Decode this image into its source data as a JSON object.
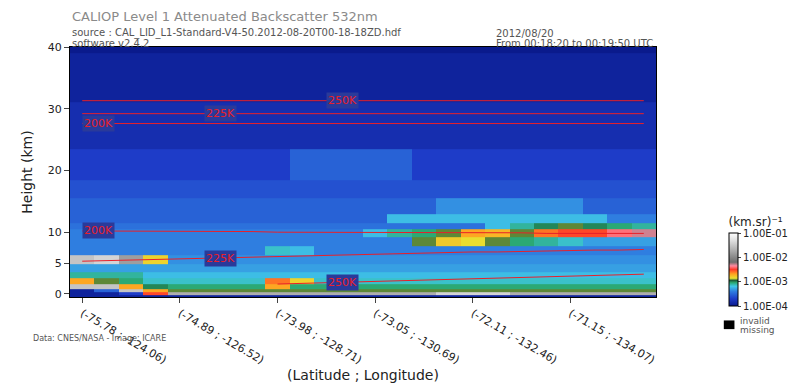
{
  "chart_data": {
    "type": "heatmap",
    "title": "CALIOP Level 1 Attenuated Backscatter 532nm",
    "annotations": [
      "source : CAL_LID_L1-Standard-V4-50.2012-08-20T00-18-18ZD.hdf",
      "software v2.4.2",
      "2012/08/20",
      "From 00:18:20 to 00:19:50 UTC",
      "invalid",
      "missing",
      "Data: CNES/NASA - Image: ICARE"
    ],
    "x_label": "(Latitude ; Longitude)",
    "y_label": "Height (km)",
    "categories": [
      "(-75.78 ; -124.06)",
      null,
      null,
      null,
      "(-74.89 ; -126.52)",
      null,
      null,
      null,
      "(-73.98 ; -128.71)",
      null,
      null,
      null,
      "(-73.05 ; -130.69)",
      null,
      null,
      null,
      "(-72.11 ; -132.46)",
      null,
      null,
      null,
      "(-71.15 ; -134.07)",
      null,
      null,
      null
    ],
    "y": [
      -0.5,
      0,
      0.5,
      1,
      2,
      3,
      4,
      5.5,
      7,
      8.5,
      10,
      11,
      12,
      14,
      17,
      20,
      27,
      35
    ],
    "ylim": [
      -0.5,
      40
    ],
    "yticks": [
      0,
      5,
      10,
      20,
      30,
      40
    ],
    "cells": [
      [
        0.00012,
        0.00012,
        0.00012,
        0.00012,
        0.00012,
        0.00012,
        0.00012,
        0.00012,
        0.00012,
        0.00012,
        0.00012,
        0.00012,
        0.00012,
        0.00012,
        0.00012,
        0.00012,
        0.00012,
        0.00012,
        0.00012,
        0.00012,
        0.00012,
        0.00012,
        0.00012,
        0.00012
      ],
      [
        0.00012,
        0.00012,
        0.0002,
        0.003,
        0.02,
        0.02,
        0.02,
        0.02,
        0.02,
        0.02,
        0.02,
        0.02,
        0.02,
        0.02,
        0.02,
        0.04,
        0.04,
        0.04,
        0.02,
        0.02,
        0.02,
        0.02,
        0.02,
        0.02
      ],
      [
        0.00012,
        0.0003,
        0.03,
        0.002,
        0.0012,
        0.0012,
        0.0012,
        0.0012,
        0.0012,
        0.0012,
        0.0012,
        0.0012,
        0.0012,
        0.0012,
        0.0012,
        0.0012,
        0.0012,
        0.0012,
        0.0012,
        0.0012,
        0.0012,
        0.0012,
        0.0012,
        0.0012
      ],
      [
        0.03,
        0.03,
        0.002,
        0.001,
        0.0009,
        0.0009,
        0.0009,
        0.0009,
        0.002,
        0.0009,
        0.0009,
        0.0009,
        0.0009,
        0.0009,
        0.0009,
        0.0009,
        0.0009,
        0.0009,
        0.0009,
        0.0009,
        0.0009,
        0.0009,
        0.0009,
        0.0009
      ],
      [
        0.002,
        0.0012,
        0.0009,
        0.0007,
        0.0007,
        0.0007,
        0.0007,
        0.0007,
        0.0025,
        0.0015,
        0.0007,
        0.0007,
        0.0007,
        0.0007,
        0.0007,
        0.0007,
        0.0007,
        0.0007,
        0.0007,
        0.0007,
        0.0007,
        0.0007,
        0.0007,
        0.0007
      ],
      [
        0.0008,
        0.0008,
        0.0008,
        0.0006,
        0.0006,
        0.0006,
        0.0006,
        0.0006,
        0.0006,
        0.0006,
        0.0006,
        0.0006,
        0.0006,
        0.0006,
        0.0006,
        0.0006,
        0.0006,
        0.0006,
        0.0006,
        0.0006,
        0.0006,
        0.0006,
        0.0006,
        0.0006
      ],
      [
        0.0005,
        0.0005,
        0.0005,
        0.0005,
        0.0005,
        0.0005,
        0.0005,
        0.0005,
        0.0005,
        0.0005,
        0.0005,
        0.0005,
        0.0005,
        0.0005,
        0.0005,
        0.0005,
        0.0005,
        0.0005,
        0.0005,
        0.0005,
        0.0005,
        0.0005,
        0.0005,
        0.0005
      ],
      [
        0.03,
        0.04,
        0.015,
        0.0015,
        0.00045,
        0.00045,
        0.00045,
        0.00045,
        0.00045,
        0.00045,
        0.00045,
        0.00045,
        0.00045,
        0.00045,
        0.00045,
        0.00045,
        0.00045,
        0.00045,
        0.00045,
        0.00045,
        0.00045,
        0.00045,
        0.00045,
        0.00045
      ],
      [
        0.0004,
        0.0004,
        0.0004,
        0.0004,
        0.0004,
        0.0004,
        0.0004,
        0.0004,
        0.0007,
        0.0006,
        0.0004,
        0.0004,
        0.0004,
        0.0004,
        0.0004,
        0.0004,
        0.0004,
        0.0004,
        0.0004,
        0.0004,
        0.0004,
        0.0004,
        0.0004,
        0.0004
      ],
      [
        0.0004,
        0.0004,
        0.0004,
        0.0004,
        0.0004,
        0.0004,
        0.0004,
        0.0004,
        0.0004,
        0.0004,
        0.0004,
        0.0004,
        0.0004,
        0.0004,
        0.0012,
        0.0016,
        0.0014,
        0.0012,
        0.0009,
        0.0008,
        0.0007,
        0.0005,
        0.0005,
        0.0005
      ],
      [
        0.0004,
        0.0004,
        0.0004,
        0.0004,
        0.0004,
        0.0004,
        0.0004,
        0.0004,
        0.0004,
        0.0004,
        0.0004,
        0.0004,
        0.0006,
        0.0008,
        0.0009,
        0.0012,
        0.002,
        0.0018,
        0.0012,
        0.0025,
        0.003,
        0.003,
        0.004,
        0.005
      ],
      [
        0.00035,
        0.00035,
        0.00035,
        0.00035,
        0.00035,
        0.00035,
        0.00035,
        0.00035,
        0.00035,
        0.00035,
        0.00035,
        0.00035,
        0.00035,
        0.00035,
        0.00035,
        0.00035,
        0.00035,
        0.0006,
        0.0008,
        0.001,
        0.0012,
        0.001,
        0.0009,
        0.0008
      ],
      [
        0.0003,
        0.0003,
        0.0003,
        0.0003,
        0.0003,
        0.0003,
        0.0003,
        0.0003,
        0.0003,
        0.0003,
        0.0003,
        0.0003,
        0.0003,
        0.0006,
        0.0006,
        0.0006,
        0.0006,
        0.0006,
        0.0006,
        0.0006,
        0.0006,
        0.0006,
        0.0004,
        0.0004
      ],
      [
        0.0003,
        0.0003,
        0.0003,
        0.0003,
        0.0003,
        0.0003,
        0.0003,
        0.0003,
        0.0003,
        0.0003,
        0.0003,
        0.0003,
        0.0003,
        0.0003,
        0.0003,
        0.00045,
        0.00045,
        0.00045,
        0.00045,
        0.00045,
        0.00045,
        0.0003,
        0.0003,
        0.0003
      ],
      [
        0.00025,
        0.00025,
        0.00025,
        0.00025,
        0.00025,
        0.00025,
        0.00025,
        0.00025,
        0.00025,
        0.00025,
        0.00025,
        0.00025,
        0.00025,
        0.00025,
        0.00025,
        0.00025,
        0.00025,
        0.00025,
        0.00025,
        0.00025,
        0.00025,
        0.00025,
        0.00025,
        0.00025
      ],
      [
        0.0002,
        0.0002,
        0.0002,
        0.0002,
        0.0002,
        0.0002,
        0.0002,
        0.0002,
        0.0002,
        0.0003,
        0.0003,
        0.0003,
        0.0003,
        0.0003,
        0.0002,
        0.0002,
        0.0002,
        0.0002,
        0.0002,
        0.0002,
        0.0002,
        0.0002,
        0.0002,
        0.0002
      ],
      [
        0.00015,
        0.00015,
        0.00015,
        0.00015,
        0.00015,
        0.00015,
        0.00015,
        0.00015,
        0.00015,
        0.00015,
        0.00015,
        0.00015,
        0.00015,
        0.00015,
        0.00015,
        0.00015,
        0.00015,
        0.00015,
        0.00015,
        0.00015,
        0.00015,
        0.00015,
        0.00015,
        0.00015
      ],
      [
        0.00012,
        0.00012,
        0.00012,
        0.00012,
        0.00012,
        0.00012,
        0.00012,
        0.00012,
        0.00012,
        0.00012,
        0.00012,
        0.00012,
        0.00012,
        0.00012,
        0.00012,
        0.00012,
        0.00012,
        0.00012,
        0.00012,
        0.00012,
        0.00012,
        0.00012,
        0.00012,
        0.00012
      ]
    ],
    "colorbar": {
      "title": "(km.sr)⁻¹",
      "log": true,
      "range": [
        0.0001,
        0.1
      ],
      "ticks": [
        {
          "value": 0.0001,
          "label": "1.00E-04"
        },
        {
          "value": 0.001,
          "label": "1.00E-03"
        },
        {
          "value": 0.01,
          "label": "1.00E-02"
        },
        {
          "value": 0.1,
          "label": "1.00E-01"
        }
      ]
    },
    "series": [
      {
        "name": "200K",
        "type": "line",
        "color": "#e8202a",
        "values": [
          10.2,
          10.2,
          10.2,
          10.1,
          10.1,
          10.1,
          10.1,
          10.1,
          10.0,
          10.0,
          10.0,
          10.0,
          10.0,
          10.0,
          9.9,
          9.9,
          9.9,
          9.9,
          9.9,
          9.8,
          9.8,
          9.8,
          9.8,
          9.8
        ]
      },
      {
        "name": "225K",
        "type": "line",
        "color": "#e8202a",
        "values": [
          5.3,
          5.4,
          5.5,
          5.6,
          5.7,
          5.8,
          5.9,
          6.0,
          6.1,
          6.2,
          6.3,
          6.4,
          6.5,
          6.5,
          6.6,
          6.7,
          6.8,
          6.8,
          6.9,
          7.0,
          7.0,
          7.1,
          7.1,
          7.2
        ]
      },
      {
        "name": "250K",
        "type": "line",
        "color": "#e8202a",
        "values": [
          null,
          null,
          null,
          null,
          null,
          null,
          null,
          null,
          1.6,
          1.7,
          1.8,
          1.9,
          2.0,
          2.1,
          2.2,
          2.4,
          2.5,
          2.6,
          2.7,
          2.8,
          2.9,
          3.0,
          3.1,
          3.2
        ]
      },
      {
        "name": "200K",
        "type": "line",
        "color": "#e8202a",
        "values": [
          27.6,
          27.6,
          27.6,
          27.6,
          27.6,
          27.6,
          27.6,
          27.6,
          27.6,
          27.6,
          27.6,
          27.6,
          27.6,
          27.6,
          27.6,
          27.6,
          27.6,
          27.6,
          27.6,
          27.6,
          27.6,
          27.6,
          27.6,
          27.6
        ]
      },
      {
        "name": "225K",
        "type": "line",
        "color": "#e8202a",
        "values": [
          29.2,
          29.2,
          29.2,
          29.2,
          29.2,
          29.2,
          29.2,
          29.2,
          29.2,
          29.2,
          29.2,
          29.2,
          29.2,
          29.2,
          29.2,
          29.2,
          29.2,
          29.2,
          29.2,
          29.2,
          29.2,
          29.2,
          29.2,
          29.2
        ]
      },
      {
        "name": "250K",
        "type": "line",
        "color": "#e8202a",
        "values": [
          31.3,
          31.3,
          31.3,
          31.3,
          31.3,
          31.3,
          31.3,
          31.3,
          31.3,
          31.3,
          31.3,
          31.3,
          31.3,
          31.3,
          31.3,
          31.3,
          31.3,
          31.3,
          31.3,
          31.3,
          31.3,
          31.3,
          31.3,
          31.3
        ]
      }
    ],
    "grid": false
  }
}
